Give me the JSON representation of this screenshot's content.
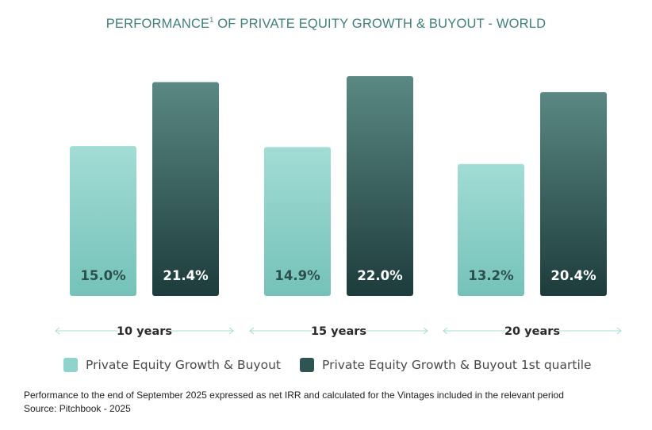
{
  "title": {
    "text_before": "PERFORMANCE",
    "superscript": "1",
    "text_after": " OF PRIVATE EQUITY GROWTH & BUYOUT - WORLD"
  },
  "chart_data": {
    "type": "bar",
    "categories": [
      "10 years",
      "15 years",
      "20 years"
    ],
    "series": [
      {
        "name": "Private Equity Growth & Buyout",
        "values": [
          15.0,
          14.9,
          13.2
        ],
        "labels": [
          "15.0%",
          "14.9%",
          "13.2%"
        ],
        "color_top": "#a2dcd5",
        "color_bottom": "#74c2b9",
        "label_color": "#2c4f4c"
      },
      {
        "name": "Private Equity Growth & Buyout 1st quartile",
        "values": [
          21.4,
          22.0,
          20.4
        ],
        "labels": [
          "21.4%",
          "22.0%",
          "20.4%"
        ],
        "color_top": "#5a8882",
        "color_bottom": "#1d3c3b",
        "label_color": "#ffffff"
      }
    ],
    "ylim": [
      0,
      24
    ],
    "grid": false,
    "legend_position": "bottom"
  },
  "legend": [
    {
      "label": "Private Equity Growth & Buyout",
      "color": "#8fd3cb"
    },
    {
      "label": "Private Equity Growth & Buyout 1st quartile",
      "color": "#2f5553"
    }
  ],
  "footnotes": {
    "line1": "Performance to the end of September 2025 expressed as net IRR and calculated for the Vintages included in the relevant period",
    "line2": "Source: Pitchbook - 2025"
  },
  "colors": {
    "title": "#3f7f7b",
    "arrow": "#a9dcd6"
  }
}
